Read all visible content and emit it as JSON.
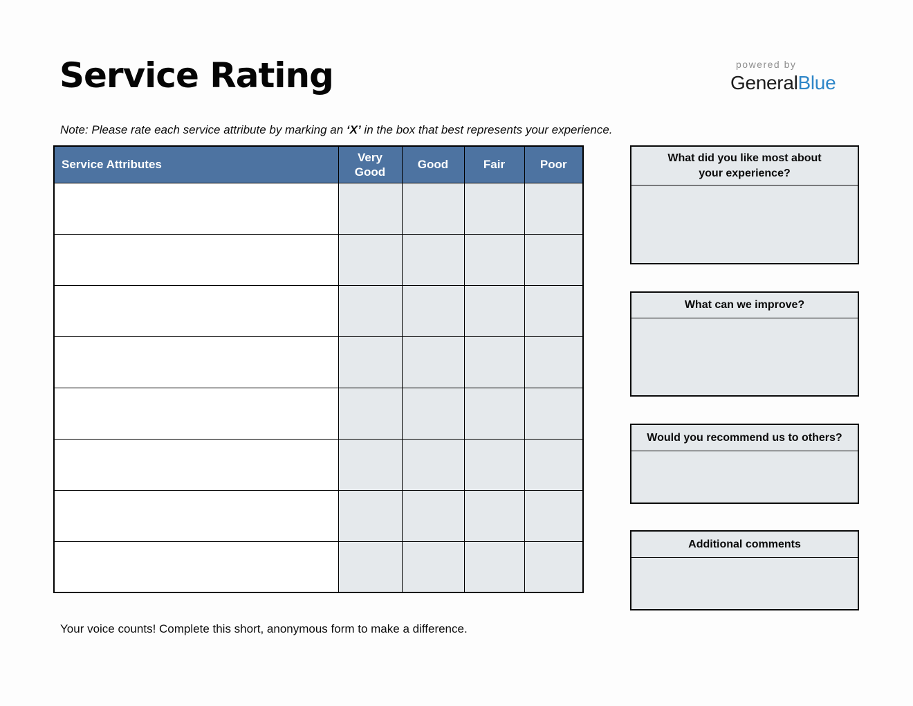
{
  "page": {
    "title": "Service Rating",
    "note_prefix": "Note: Please rate each service attribute by marking an ",
    "note_bold": "‘X’",
    "note_suffix": " in the box that best represents your experience.",
    "footer": "Your voice counts! Complete this short, anonymous form to make a difference."
  },
  "branding": {
    "powered_by": "powered by",
    "brand_first": "General",
    "brand_second": "Blue"
  },
  "table": {
    "columns": [
      "Service Attributes",
      "Very Good",
      "Good",
      "Fair",
      "Poor"
    ],
    "empty_row_count": 8
  },
  "feedback_boxes": [
    {
      "title": "What did you like most about your experience?"
    },
    {
      "title": "What can we improve?"
    },
    {
      "title": "Would you recommend us to others?"
    },
    {
      "title": "Additional comments"
    }
  ],
  "colors": {
    "header_blue": "#4d73a1",
    "cell_fill": "#e5e9ec",
    "table_border": "#000000",
    "brand_blue": "#2e86c8",
    "powered_by_gray": "#8e8e8e"
  }
}
